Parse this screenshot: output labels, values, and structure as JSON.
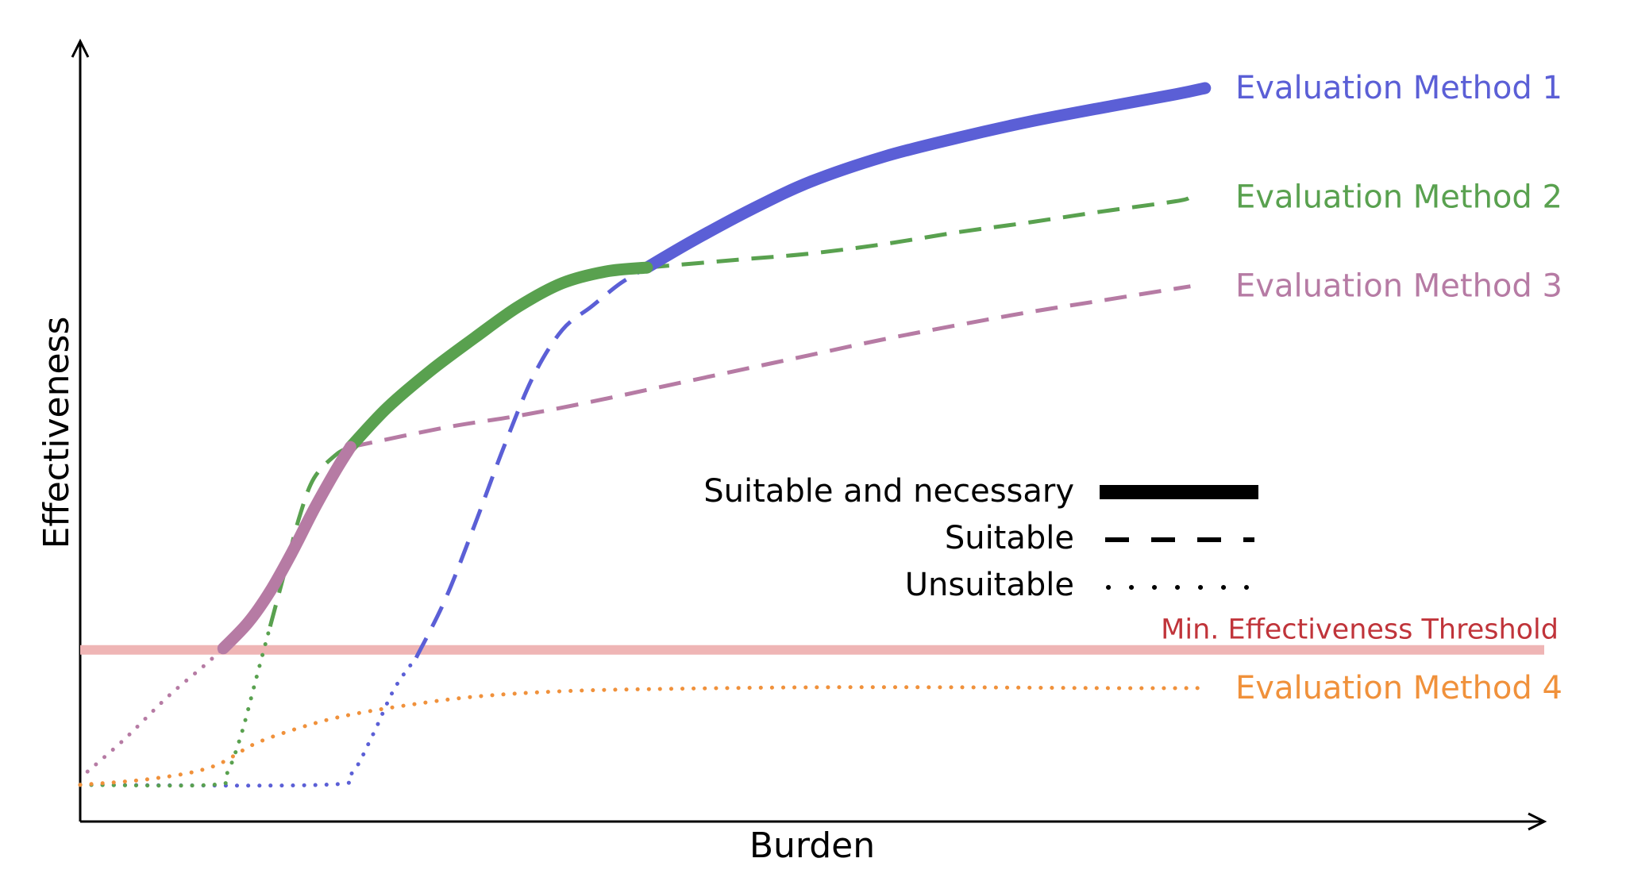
{
  "colors": {
    "method1": "#5b5fd6",
    "method2": "#59a14f",
    "method3": "#b67ba4",
    "method4": "#f0913b",
    "threshold_line": "#efb5b5",
    "threshold_text": "#c0343a",
    "axis": "#000000"
  },
  "chart_data": {
    "type": "line",
    "xlabel": "Burden",
    "ylabel": "Effectiveness",
    "axes_numeric_ticks": false,
    "grid": false,
    "xlim": [
      0,
      1
    ],
    "ylim": [
      0,
      1
    ],
    "threshold": {
      "label": "Min. Effectiveness Threshold",
      "y": 0.22
    },
    "legend": [
      {
        "label": "Suitable and necessary",
        "style": "solid"
      },
      {
        "label": "Suitable",
        "style": "dashed"
      },
      {
        "label": "Unsuitable",
        "style": "dotted"
      }
    ],
    "series": [
      {
        "name": "Evaluation Method 1",
        "color_key": "method1",
        "segments": [
          {
            "style": "dotted",
            "points": [
              [
                0.0,
                0.047
              ],
              [
                0.165,
                0.047
              ],
              [
                0.185,
                0.06
              ],
              [
                0.2,
                0.11
              ],
              [
                0.215,
                0.17
              ],
              [
                0.23,
                0.21
              ]
            ]
          },
          {
            "style": "dashed",
            "points": [
              [
                0.23,
                0.21
              ],
              [
                0.25,
                0.285
              ],
              [
                0.27,
                0.38
              ],
              [
                0.29,
                0.48
              ],
              [
                0.31,
                0.57
              ],
              [
                0.33,
                0.63
              ],
              [
                0.35,
                0.66
              ],
              [
                0.37,
                0.69
              ],
              [
                0.388,
                0.71
              ]
            ]
          },
          {
            "style": "solid",
            "points": [
              [
                0.388,
                0.71
              ],
              [
                0.42,
                0.745
              ],
              [
                0.46,
                0.785
              ],
              [
                0.5,
                0.82
              ],
              [
                0.55,
                0.852
              ],
              [
                0.6,
                0.876
              ],
              [
                0.65,
                0.897
              ],
              [
                0.7,
                0.915
              ],
              [
                0.75,
                0.932
              ],
              [
                0.77,
                0.94
              ]
            ]
          }
        ]
      },
      {
        "name": "Evaluation Method 2",
        "color_key": "method2",
        "segments": [
          {
            "style": "dotted",
            "points": [
              [
                0.0,
                0.047
              ],
              [
                0.09,
                0.047
              ],
              [
                0.1,
                0.06
              ],
              [
                0.11,
                0.11
              ],
              [
                0.12,
                0.18
              ],
              [
                0.13,
                0.25
              ]
            ]
          },
          {
            "style": "dashed",
            "points": [
              [
                0.13,
                0.25
              ],
              [
                0.14,
                0.32
              ],
              [
                0.15,
                0.39
              ],
              [
                0.16,
                0.44
              ],
              [
                0.175,
                0.47
              ],
              [
                0.185,
                0.48
              ]
            ]
          },
          {
            "style": "solid",
            "points": [
              [
                0.185,
                0.48
              ],
              [
                0.21,
                0.53
              ],
              [
                0.24,
                0.578
              ],
              [
                0.27,
                0.62
              ],
              [
                0.3,
                0.66
              ],
              [
                0.33,
                0.69
              ],
              [
                0.36,
                0.705
              ],
              [
                0.388,
                0.71
              ]
            ]
          },
          {
            "style": "dashed",
            "points": [
              [
                0.388,
                0.71
              ],
              [
                0.45,
                0.72
              ],
              [
                0.5,
                0.728
              ],
              [
                0.55,
                0.74
              ],
              [
                0.6,
                0.755
              ],
              [
                0.65,
                0.768
              ],
              [
                0.7,
                0.782
              ],
              [
                0.75,
                0.795
              ],
              [
                0.76,
                0.8
              ]
            ]
          }
        ]
      },
      {
        "name": "Evaluation Method 3",
        "color_key": "method3",
        "segments": [
          {
            "style": "dotted",
            "points": [
              [
                0.005,
                0.064
              ],
              [
                0.03,
                0.105
              ],
              [
                0.06,
                0.16
              ],
              [
                0.085,
                0.2
              ],
              [
                0.098,
                0.222
              ]
            ]
          },
          {
            "style": "solid",
            "points": [
              [
                0.098,
                0.222
              ],
              [
                0.115,
                0.255
              ],
              [
                0.13,
                0.295
              ],
              [
                0.145,
                0.345
              ],
              [
                0.16,
                0.4
              ],
              [
                0.175,
                0.45
              ],
              [
                0.185,
                0.48
              ]
            ]
          },
          {
            "style": "dashed",
            "points": [
              [
                0.185,
                0.48
              ],
              [
                0.25,
                0.505
              ],
              [
                0.3,
                0.52
              ],
              [
                0.35,
                0.538
              ],
              [
                0.4,
                0.558
              ],
              [
                0.45,
                0.578
              ],
              [
                0.5,
                0.598
              ],
              [
                0.55,
                0.618
              ],
              [
                0.6,
                0.636
              ],
              [
                0.65,
                0.653
              ],
              [
                0.7,
                0.668
              ],
              [
                0.75,
                0.683
              ],
              [
                0.76,
                0.686
              ]
            ]
          }
        ]
      },
      {
        "name": "Evaluation Method 4",
        "color_key": "method4",
        "segments": [
          {
            "style": "dotted",
            "points": [
              [
                0.0,
                0.047
              ],
              [
                0.05,
                0.055
              ],
              [
                0.09,
                0.07
              ],
              [
                0.12,
                0.1
              ],
              [
                0.15,
                0.12
              ],
              [
                0.18,
                0.135
              ],
              [
                0.22,
                0.148
              ],
              [
                0.27,
                0.16
              ],
              [
                0.33,
                0.167
              ],
              [
                0.4,
                0.17
              ],
              [
                0.5,
                0.172
              ],
              [
                0.6,
                0.172
              ],
              [
                0.7,
                0.171
              ],
              [
                0.77,
                0.171
              ]
            ]
          }
        ]
      }
    ]
  }
}
